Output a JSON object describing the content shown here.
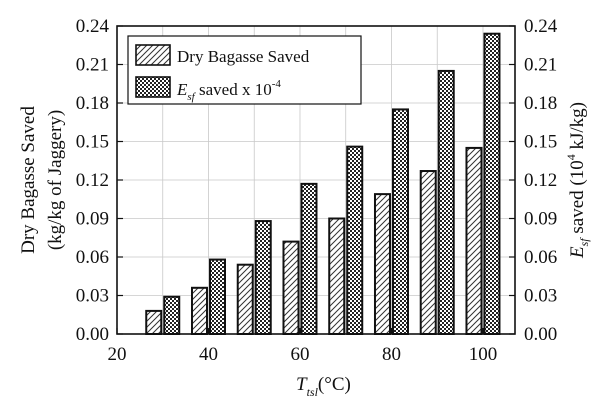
{
  "chart_data": {
    "type": "bar",
    "x": [
      30,
      40,
      50,
      60,
      70,
      80,
      90,
      100
    ],
    "xlim": [
      20,
      107
    ],
    "xticks": [
      "20",
      "40",
      "60",
      "80",
      "100"
    ],
    "xtick_values": [
      20,
      40,
      60,
      80,
      100
    ],
    "xlabel_main": "T",
    "xlabel_sub": "tsl",
    "xlabel_unit": "(°C)",
    "series": [
      {
        "name": "Dry Bagasse Saved",
        "pattern": "hatch",
        "axis": "left",
        "values": [
          0.018,
          0.036,
          0.054,
          0.072,
          0.09,
          0.109,
          0.127,
          0.145
        ]
      },
      {
        "name_main": "E",
        "name_sub": "sf",
        "name_rest": " saved x 10",
        "name_sup": "-4",
        "pattern": "crosshatch",
        "axis": "right",
        "values": [
          0.029,
          0.058,
          0.088,
          0.117,
          0.146,
          0.175,
          0.205,
          0.234
        ]
      }
    ],
    "ylim": [
      0,
      0.24
    ],
    "yticks": [
      "0.00",
      "0.03",
      "0.06",
      "0.09",
      "0.12",
      "0.15",
      "0.18",
      "0.21",
      "0.24"
    ],
    "ylabel_line1": "Dry Bagasse Saved",
    "ylabel_line2": "(kg/kg of Jaggery)",
    "y2lim": [
      0,
      0.24
    ],
    "y2ticks": [
      "0.00",
      "0.03",
      "0.06",
      "0.09",
      "0.12",
      "0.15",
      "0.18",
      "0.21",
      "0.24"
    ],
    "y2label_main": "E",
    "y2label_sub": "sf",
    "y2label_rest": " saved (10",
    "y2label_sup": "4",
    "y2label_unit": " kJ/kg)",
    "grid": true,
    "legend_position": "top-left"
  }
}
